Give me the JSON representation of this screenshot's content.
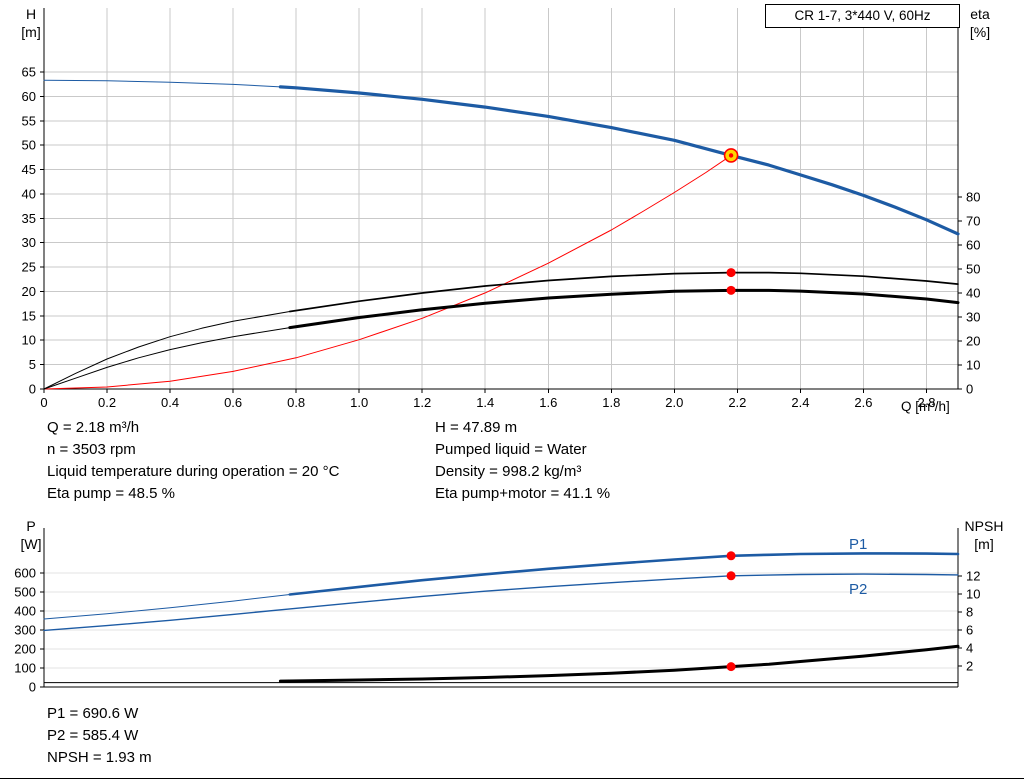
{
  "colors": {
    "blue": "#1d5ba4",
    "red": "#ff0000",
    "black": "#000000",
    "duty_fill": "#ffd500",
    "grid": "#c9c9c9",
    "grid_light": "#e3e3e3"
  },
  "annotations": {
    "left": [
      "Q = 2.18 m³/h",
      "n = 3503 rpm",
      "Liquid temperature during operation = 20 °C",
      "Eta pump = 48.5 %"
    ],
    "right": [
      "H = 47.89 m",
      "Pumped liquid = Water",
      "Density = 998.2 kg/m³",
      "Eta pump+motor = 41.1 %"
    ],
    "bottom": [
      "P1 = 690.6 W",
      "P2 = 585.4 W",
      "NPSH = 1.93 m"
    ]
  },
  "chart_data": [
    {
      "type": "line",
      "title": "CR 1-7, 3*440 V, 60Hz",
      "x_axis": {
        "label": "Q [m³/h]",
        "min": 0,
        "max": 2.9,
        "ticks": [
          "0",
          "0.2",
          "0.4",
          "0.6",
          "0.8",
          "1.0",
          "1.2",
          "1.4",
          "1.6",
          "1.8",
          "2.0",
          "2.2",
          "2.4",
          "2.6",
          "2.8"
        ]
      },
      "y_left": {
        "title": "H",
        "unit": "[m]",
        "min": 0,
        "max": 65,
        "ticks": [
          "0",
          "5",
          "10",
          "15",
          "20",
          "25",
          "30",
          "35",
          "40",
          "45",
          "50",
          "55",
          "60",
          "65"
        ]
      },
      "y_right": {
        "title": "eta",
        "unit": "[%]",
        "min": 0,
        "max": 80,
        "ticks": [
          "0",
          "10",
          "20",
          "30",
          "40",
          "50",
          "60",
          "70",
          "80"
        ]
      },
      "series": [
        {
          "name": "H pump curve",
          "axis": "left",
          "color": "blue",
          "width": 3.2,
          "thin_until": 0.75,
          "points": [
            [
              0,
              63.3
            ],
            [
              0.2,
              63.2
            ],
            [
              0.4,
              62.9
            ],
            [
              0.6,
              62.45
            ],
            [
              0.75,
              61.95
            ],
            [
              0.8,
              61.75
            ],
            [
              1.0,
              60.7
            ],
            [
              1.2,
              59.4
            ],
            [
              1.4,
              57.8
            ],
            [
              1.6,
              55.9
            ],
            [
              1.8,
              53.6
            ],
            [
              2.0,
              51.0
            ],
            [
              2.18,
              47.89
            ],
            [
              2.3,
              45.9
            ],
            [
              2.4,
              43.9
            ],
            [
              2.5,
              41.9
            ],
            [
              2.6,
              39.7
            ],
            [
              2.7,
              37.3
            ],
            [
              2.8,
              34.7
            ],
            [
              2.9,
              31.8
            ]
          ]
        },
        {
          "name": "System curve",
          "axis": "left",
          "color": "red",
          "width": 1,
          "points": [
            [
              0,
              0
            ],
            [
              0.2,
              0.4
            ],
            [
              0.4,
              1.6
            ],
            [
              0.6,
              3.6
            ],
            [
              0.8,
              6.4
            ],
            [
              1.0,
              10.1
            ],
            [
              1.2,
              14.5
            ],
            [
              1.4,
              19.7
            ],
            [
              1.6,
              25.8
            ],
            [
              1.8,
              32.6
            ],
            [
              1.9,
              36.4
            ],
            [
              2.0,
              40.3
            ],
            [
              2.1,
              44.4
            ],
            [
              2.18,
              47.89
            ]
          ]
        },
        {
          "name": "Eta pump",
          "axis": "right",
          "color": "black",
          "width": 1.7,
          "thin_until": 0.78,
          "points": [
            [
              0,
              0
            ],
            [
              0.1,
              6.5
            ],
            [
              0.2,
              12.5
            ],
            [
              0.3,
              17.5
            ],
            [
              0.4,
              21.8
            ],
            [
              0.5,
              25.3
            ],
            [
              0.6,
              28.2
            ],
            [
              0.78,
              32.3
            ],
            [
              1.0,
              36.6
            ],
            [
              1.2,
              40.0
            ],
            [
              1.4,
              42.9
            ],
            [
              1.6,
              45.2
            ],
            [
              1.8,
              46.9
            ],
            [
              2.0,
              48.1
            ],
            [
              2.18,
              48.5
            ],
            [
              2.3,
              48.5
            ],
            [
              2.4,
              48.2
            ],
            [
              2.6,
              47.0
            ],
            [
              2.8,
              45.0
            ],
            [
              2.9,
              43.7
            ]
          ]
        },
        {
          "name": "Eta pump+motor",
          "axis": "right",
          "color": "black",
          "width": 3,
          "thin_until": 0.78,
          "points": [
            [
              0,
              0
            ],
            [
              0.1,
              4.5
            ],
            [
              0.2,
              9.0
            ],
            [
              0.3,
              13.0
            ],
            [
              0.4,
              16.4
            ],
            [
              0.5,
              19.3
            ],
            [
              0.6,
              21.8
            ],
            [
              0.78,
              25.6
            ],
            [
              1.0,
              29.8
            ],
            [
              1.2,
              33.0
            ],
            [
              1.4,
              35.7
            ],
            [
              1.6,
              37.9
            ],
            [
              1.8,
              39.5
            ],
            [
              2.0,
              40.7
            ],
            [
              2.18,
              41.1
            ],
            [
              2.3,
              41.1
            ],
            [
              2.4,
              40.8
            ],
            [
              2.6,
              39.6
            ],
            [
              2.8,
              37.5
            ],
            [
              2.9,
              36.0
            ]
          ]
        }
      ],
      "duty_point": {
        "x": 2.18,
        "y": 47.89,
        "axis": "left"
      },
      "markers": [
        {
          "x": 2.18,
          "y": 48.5,
          "axis": "right"
        },
        {
          "x": 2.18,
          "y": 41.1,
          "axis": "right"
        }
      ]
    },
    {
      "type": "line",
      "x_axis": {
        "label": "",
        "min": 0,
        "max": 2.9,
        "ticks": []
      },
      "y_left": {
        "title": "P",
        "unit": "[W]",
        "min": 0,
        "max": 700,
        "ticks": [
          "0",
          "100",
          "200",
          "300",
          "400",
          "500",
          "600"
        ]
      },
      "y_right": {
        "title": "NPSH",
        "unit": "[m]",
        "min": 0,
        "max": 14,
        "ticks": [
          "2",
          "4",
          "6",
          "8",
          "10",
          "12"
        ]
      },
      "series": [
        {
          "name": "P1",
          "axis": "left",
          "color": "blue",
          "width": 2.6,
          "thin_until": 0.78,
          "points": [
            [
              0,
              358
            ],
            [
              0.2,
              386
            ],
            [
              0.4,
              417
            ],
            [
              0.6,
              452
            ],
            [
              0.78,
              487
            ],
            [
              1.0,
              527
            ],
            [
              1.2,
              562
            ],
            [
              1.4,
              593
            ],
            [
              1.6,
              622
            ],
            [
              1.8,
              648
            ],
            [
              2.0,
              671
            ],
            [
              2.18,
              690.6
            ],
            [
              2.3,
              696
            ],
            [
              2.4,
              700
            ],
            [
              2.6,
              703
            ],
            [
              2.8,
              702
            ],
            [
              2.9,
              700
            ]
          ]
        },
        {
          "name": "P2",
          "axis": "left",
          "color": "blue",
          "width": 1.4,
          "points": [
            [
              0,
              298
            ],
            [
              0.2,
              323
            ],
            [
              0.4,
              351
            ],
            [
              0.6,
              382
            ],
            [
              0.78,
              411
            ],
            [
              1.0,
              446
            ],
            [
              1.2,
              477
            ],
            [
              1.4,
              504
            ],
            [
              1.6,
              528
            ],
            [
              1.8,
              549
            ],
            [
              2.0,
              569
            ],
            [
              2.18,
              585.4
            ],
            [
              2.3,
              589
            ],
            [
              2.4,
              592
            ],
            [
              2.6,
              594
            ],
            [
              2.8,
              592
            ],
            [
              2.9,
              590
            ]
          ]
        },
        {
          "name": "NPSH",
          "axis": "right",
          "color": "black",
          "width": 3,
          "points": [
            [
              0.75,
              0.32
            ],
            [
              1.0,
              0.44
            ],
            [
              1.2,
              0.56
            ],
            [
              1.4,
              0.72
            ],
            [
              1.6,
              0.93
            ],
            [
              1.8,
              1.2
            ],
            [
              2.0,
              1.52
            ],
            [
              2.18,
              1.93
            ],
            [
              2.3,
              2.2
            ],
            [
              2.4,
              2.5
            ],
            [
              2.6,
              3.1
            ],
            [
              2.8,
              3.8
            ],
            [
              2.9,
              4.2
            ]
          ]
        },
        {
          "name": "NPSH baseline",
          "axis": "right",
          "color": "black",
          "width": 1,
          "points": [
            [
              0,
              0.15
            ],
            [
              2.9,
              0.15
            ]
          ]
        }
      ],
      "markers": [
        {
          "x": 2.18,
          "y": 690.6,
          "axis": "left"
        },
        {
          "x": 2.18,
          "y": 585.4,
          "axis": "left"
        },
        {
          "x": 2.18,
          "y": 1.93,
          "axis": "right"
        }
      ]
    }
  ]
}
